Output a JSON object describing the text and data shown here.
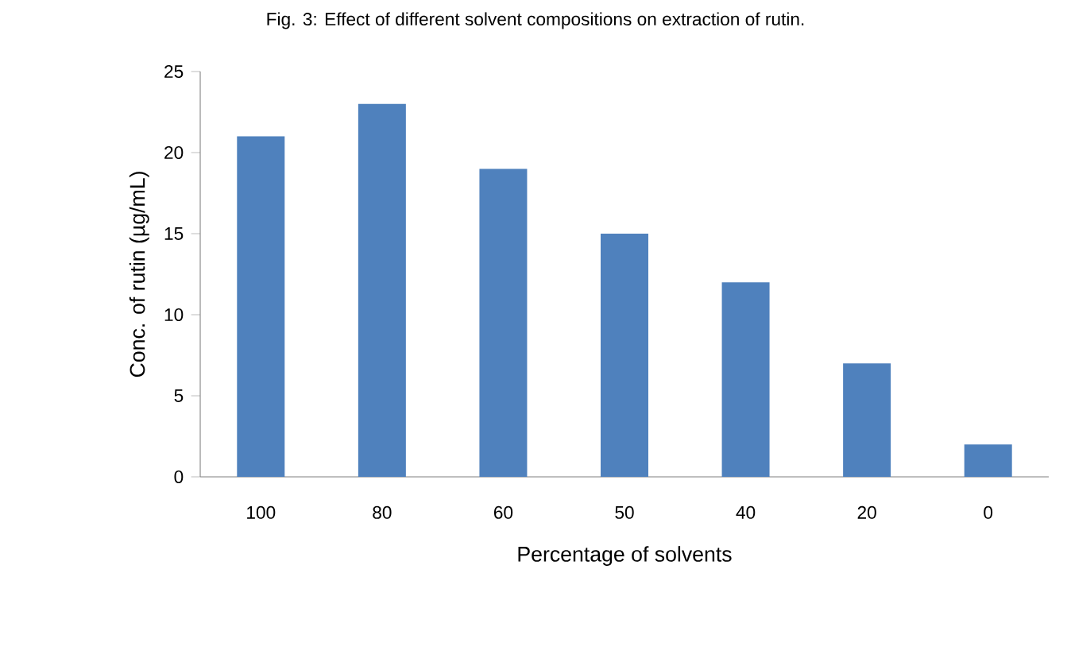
{
  "chart_data": {
    "type": "bar",
    "title": "Fig. 3: Effect of different solvent compositions on extraction of rutin.",
    "xlabel": "Percentage of solvents",
    "ylabel": "Conc. of rutin (µg/mL)",
    "categories": [
      "100",
      "80",
      "60",
      "50",
      "40",
      "20",
      "0"
    ],
    "values": [
      21,
      23,
      19,
      15,
      12,
      7,
      2
    ],
    "color": "#4f81bd",
    "ylim": [
      0,
      25
    ],
    "yticks": [
      0,
      5,
      10,
      15,
      20,
      25
    ]
  }
}
